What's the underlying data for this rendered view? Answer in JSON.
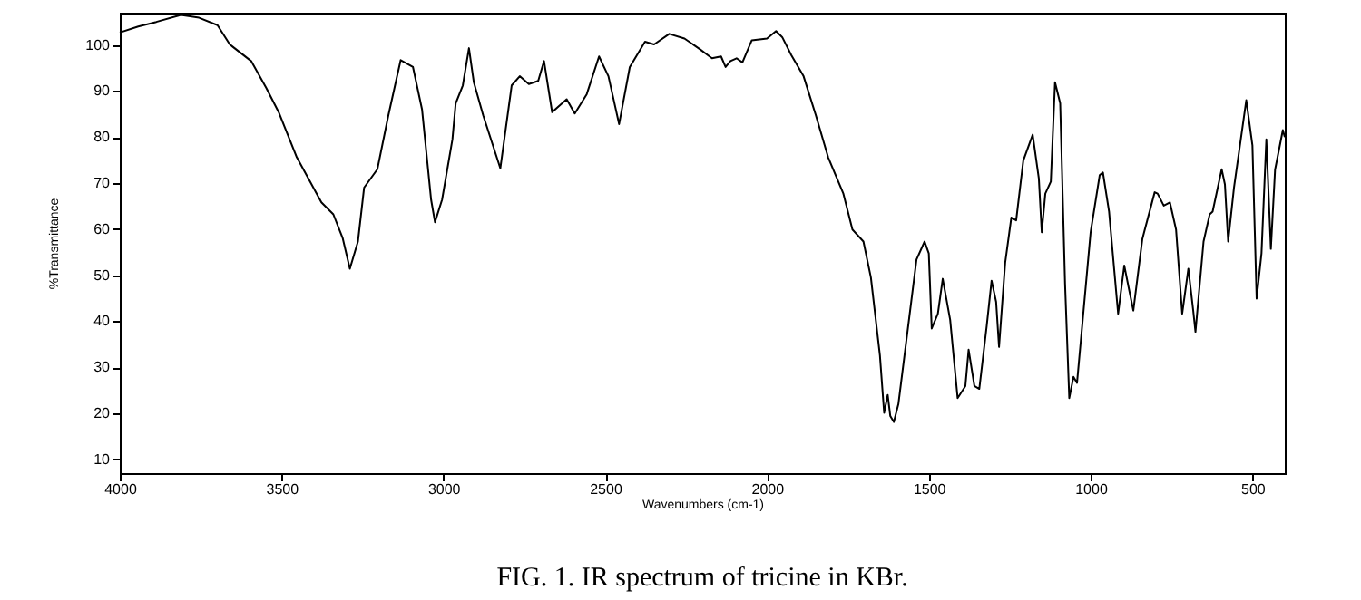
{
  "chart_data": {
    "type": "line",
    "title": "FIG. 1. IR spectrum of tricine in KBr.",
    "xlabel": "Wavenumbers (cm-1)",
    "ylabel": "%Transmittance",
    "xlim": [
      4000,
      400
    ],
    "ylim": [
      7,
      107
    ],
    "xticks": [
      4000,
      3500,
      3000,
      2500,
      2000,
      1500,
      1000,
      500
    ],
    "yticks": [
      10,
      20,
      30,
      40,
      50,
      60,
      70,
      80,
      90,
      100
    ],
    "grid": false,
    "marker": "none",
    "line_style": "solid",
    "series": [
      {
        "color": "#000000",
        "x": [
          4000,
          3943,
          3887,
          3811,
          3755,
          3698,
          3660,
          3594,
          3547,
          3509,
          3453,
          3377,
          3340,
          3311,
          3289,
          3264,
          3245,
          3204,
          3170,
          3132,
          3094,
          3066,
          3038,
          3026,
          3004,
          2972,
          2962,
          2940,
          2921,
          2906,
          2877,
          2824,
          2789,
          2764,
          2736,
          2707,
          2689,
          2664,
          2619,
          2594,
          2557,
          2519,
          2490,
          2457,
          2424,
          2377,
          2349,
          2302,
          2255,
          2208,
          2170,
          2142,
          2128,
          2113,
          2094,
          2076,
          2047,
          2000,
          1972,
          1953,
          1925,
          1887,
          1849,
          1811,
          1764,
          1736,
          1702,
          1679,
          1651,
          1638,
          1627,
          1619,
          1608,
          1594,
          1566,
          1538,
          1513,
          1500,
          1491,
          1472,
          1457,
          1434,
          1411,
          1387,
          1377,
          1359,
          1344,
          1321,
          1306,
          1292,
          1283,
          1264,
          1245,
          1230,
          1208,
          1179,
          1160,
          1151,
          1140,
          1123,
          1110,
          1094,
          1079,
          1066,
          1053,
          1042,
          1000,
          972,
          962,
          943,
          915,
          896,
          883,
          868,
          840,
          802,
          793,
          774,
          755,
          736,
          717,
          698,
          683,
          676,
          651,
          632,
          623,
          595,
          585,
          575,
          557,
          519,
          500,
          487,
          472,
          457,
          443,
          430,
          406,
          400
        ],
        "values": [
          102.7,
          104,
          105,
          106.5,
          105.9,
          104.3,
          100.1,
          96.5,
          90.6,
          85.4,
          75.6,
          65.8,
          63.2,
          58,
          51.4,
          57.3,
          69,
          73,
          84.7,
          96.7,
          95.2,
          86,
          66.4,
          61.5,
          66.4,
          79.5,
          87.3,
          91.2,
          99.3,
          91.9,
          84.7,
          73.2,
          91.2,
          93.2,
          91.5,
          92.2,
          96.5,
          85.4,
          88.2,
          85.1,
          89.3,
          97.5,
          93.2,
          82.8,
          95.2,
          100.7,
          100.1,
          102.4,
          101.4,
          99.1,
          97.1,
          97.5,
          95.2,
          96.5,
          97.1,
          96.2,
          101,
          101.4,
          103,
          101.7,
          97.8,
          93.2,
          84.7,
          75.6,
          67.7,
          59.9,
          57.3,
          49.5,
          32.5,
          20.1,
          24,
          19.4,
          18.1,
          22,
          37.7,
          53.4,
          57.3,
          54.7,
          38.4,
          41.6,
          49.2,
          40.3,
          23.3,
          25.9,
          33.8,
          25.9,
          25.3,
          39,
          48.8,
          44.2,
          34.4,
          52.7,
          62.5,
          61.9,
          74.9,
          80.5,
          71,
          59.3,
          67.7,
          70.3,
          91.9,
          87.3,
          48.1,
          23.3,
          27.9,
          26.6,
          59.3,
          71.7,
          72.3,
          63.8,
          41.6,
          52.1,
          47.5,
          42.3,
          57.9,
          68,
          67.7,
          65.1,
          65.8,
          59.9,
          41.6,
          51.4,
          42.3,
          37.7,
          57.3,
          63.2,
          63.8,
          73,
          69.7,
          57.3,
          69,
          88,
          78.2,
          44.9,
          54.7,
          79.5,
          55.7,
          72.9,
          81.5,
          80
        ]
      }
    ]
  }
}
